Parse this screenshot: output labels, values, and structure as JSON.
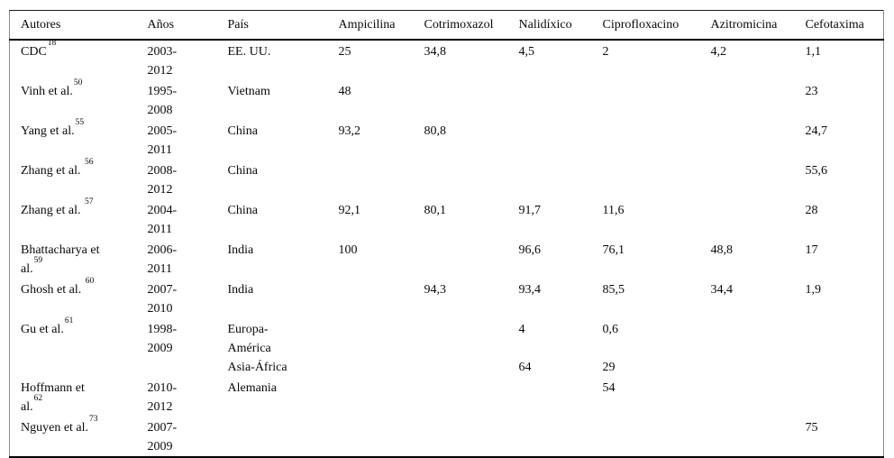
{
  "table": {
    "columns": [
      "Autores",
      "Años",
      "País",
      "Ampicilina",
      "Cotrimoxazol",
      "Nalidíxico",
      "Ciprofloxacino",
      "Azitromicina",
      "Cefotaxima"
    ],
    "rows": [
      {
        "author_lines": [
          {
            "text": "CDC",
            "sup": "18"
          }
        ],
        "anos": [
          "2003-",
          "2012"
        ],
        "pais": [
          "EE. UU."
        ],
        "ampicilina": [
          "25"
        ],
        "cotrimoxazol": [
          "34,8"
        ],
        "nalidixico": [
          "4,5"
        ],
        "ciprofloxacino": [
          "2"
        ],
        "azitromicina": [
          "4,2"
        ],
        "cefotaxima": [
          "1,1"
        ]
      },
      {
        "author_lines": [
          {
            "text": "Vinh et al.",
            "sup": "50"
          }
        ],
        "anos": [
          "1995-",
          "2008"
        ],
        "pais": [
          "Vietnam"
        ],
        "ampicilina": [
          "48"
        ],
        "cotrimoxazol": [],
        "nalidixico": [],
        "ciprofloxacino": [],
        "azitromicina": [],
        "cefotaxima": [
          "23"
        ]
      },
      {
        "author_lines": [
          {
            "text": "Yang et al.",
            "sup": "55"
          }
        ],
        "anos": [
          "2005-",
          "2011"
        ],
        "pais": [
          "China"
        ],
        "ampicilina": [
          "93,2"
        ],
        "cotrimoxazol": [
          "80,8"
        ],
        "nalidixico": [],
        "ciprofloxacino": [],
        "azitromicina": [],
        "cefotaxima": [
          "24,7"
        ]
      },
      {
        "author_lines": [
          {
            "text": "Zhang et al. ",
            "sup": "56"
          }
        ],
        "anos": [
          "2008-",
          "2012"
        ],
        "pais": [
          "China"
        ],
        "ampicilina": [],
        "cotrimoxazol": [],
        "nalidixico": [],
        "ciprofloxacino": [],
        "azitromicina": [],
        "cefotaxima": [
          "55,6"
        ]
      },
      {
        "author_lines": [
          {
            "text": "Zhang et al. ",
            "sup": "57"
          }
        ],
        "anos": [
          "2004-",
          "2011"
        ],
        "pais": [
          "China"
        ],
        "ampicilina": [
          "92,1"
        ],
        "cotrimoxazol": [
          "80,1"
        ],
        "nalidixico": [
          "91,7"
        ],
        "ciprofloxacino": [
          "11,6"
        ],
        "azitromicina": [],
        "cefotaxima": [
          "28"
        ]
      },
      {
        "author_lines": [
          {
            "text": "Bhattacharya et",
            "sup": ""
          },
          {
            "text": "al.",
            "sup": "59"
          }
        ],
        "anos": [
          "2006-",
          "2011"
        ],
        "pais": [
          "India"
        ],
        "ampicilina": [
          "100"
        ],
        "cotrimoxazol": [],
        "nalidixico": [
          "96,6"
        ],
        "ciprofloxacino": [
          "76,1"
        ],
        "azitromicina": [
          "48,8"
        ],
        "cefotaxima": [
          "17"
        ]
      },
      {
        "author_lines": [
          {
            "text": "Ghosh et al. ",
            "sup": "60"
          }
        ],
        "anos": [
          "2007-",
          "2010"
        ],
        "pais": [
          "India"
        ],
        "ampicilina": [],
        "cotrimoxazol": [
          "94,3"
        ],
        "nalidixico": [
          "93,4"
        ],
        "ciprofloxacino": [
          "85,5"
        ],
        "azitromicina": [
          "34,4"
        ],
        "cefotaxima": [
          "1,9"
        ]
      },
      {
        "author_lines": [
          {
            "text": "Gu et al.",
            "sup": "61"
          }
        ],
        "anos": [
          "1998-",
          "2009"
        ],
        "pais": [
          "Europa-",
          "América",
          "Asia-África"
        ],
        "ampicilina": [],
        "cotrimoxazol": [],
        "nalidixico": [
          "4",
          "",
          "64"
        ],
        "ciprofloxacino": [
          "0,6",
          "",
          "29"
        ],
        "azitromicina": [],
        "cefotaxima": []
      },
      {
        "author_lines": [
          {
            "text": "Hoffmann et",
            "sup": ""
          },
          {
            "text": "al.",
            "sup": "62"
          }
        ],
        "anos": [
          "2010-",
          "2012"
        ],
        "pais": [
          "Alemania"
        ],
        "ampicilina": [],
        "cotrimoxazol": [],
        "nalidixico": [],
        "ciprofloxacino": [
          "54"
        ],
        "azitromicina": [],
        "cefotaxima": []
      },
      {
        "author_lines": [
          {
            "text": "Nguyen et al.",
            "sup": "73"
          }
        ],
        "anos": [
          "2007-",
          "2009"
        ],
        "pais": [],
        "ampicilina": [],
        "cotrimoxazol": [],
        "nalidixico": [],
        "ciprofloxacino": [],
        "azitromicina": [],
        "cefotaxima": [
          "75"
        ]
      }
    ]
  }
}
